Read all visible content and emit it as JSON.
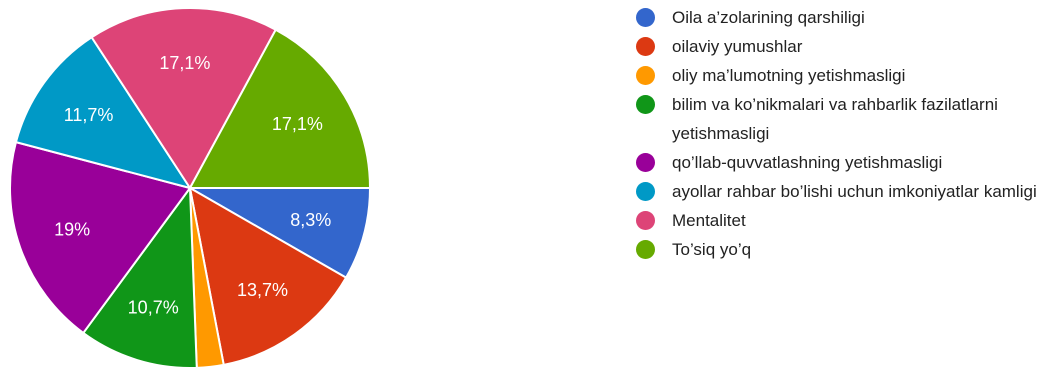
{
  "chart_data": {
    "type": "pie",
    "slices": [
      {
        "label": "Oila a’zolarining qarshiligi",
        "value": 8.3,
        "text": "8,3%",
        "color": "#3366cc"
      },
      {
        "label": "oilaviy yumushlar",
        "value": 13.7,
        "text": "13,7%",
        "color": "#dc3912"
      },
      {
        "label": "oliy ma’lumotning yetishmasligi",
        "value": 2.4,
        "text": "",
        "color": "#ff9900"
      },
      {
        "label": "bilim va ko’nikmalari va rahbarlik fazilatlarni yetishmasligi",
        "value": 10.7,
        "text": "10,7%",
        "color": "#109618"
      },
      {
        "label": "qo’llab-quvvatlashning yetishmasligi",
        "value": 19,
        "text": "19%",
        "color": "#990099"
      },
      {
        "label": "ayollar rahbar bo’lishi uchun imkoniyatlar kamligi",
        "value": 11.7,
        "text": "11,7%",
        "color": "#0099c6"
      },
      {
        "label": "Mentalitet",
        "value": 17.1,
        "text": "17,1%",
        "color": "#dd4477"
      },
      {
        "label": "To’siq yo’q",
        "value": 17.1,
        "text": "17,1%",
        "color": "#66aa00"
      }
    ],
    "start": "3 o'clock, clockwise"
  }
}
